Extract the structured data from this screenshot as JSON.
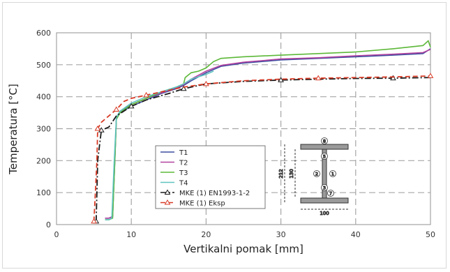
{
  "chart_data": {
    "type": "line",
    "xlabel": "Vertikalni pomak [mm]",
    "ylabel": "Temperatura [°C]",
    "xlim": [
      0,
      50
    ],
    "ylim": [
      0,
      600
    ],
    "xticks": [
      0,
      10,
      20,
      30,
      40,
      50
    ],
    "yticks": [
      0,
      100,
      200,
      300,
      400,
      500,
      600
    ],
    "grid": true,
    "legend_position": "bottom-center",
    "series": [
      {
        "name": "T1",
        "color": "#3a4ea0",
        "style": "solid",
        "marker": "none",
        "x": [
          6.5,
          7.0,
          7.5,
          7.8,
          8.0,
          8.5,
          10,
          12,
          14,
          16,
          17,
          18,
          20,
          22,
          25,
          30,
          35,
          40,
          45,
          49,
          50
        ],
        "y": [
          20,
          20,
          25,
          200,
          330,
          350,
          370,
          390,
          410,
          425,
          435,
          450,
          475,
          495,
          505,
          515,
          520,
          525,
          530,
          535,
          550
        ]
      },
      {
        "name": "T2",
        "color": "#b2429f",
        "style": "solid",
        "marker": "none",
        "x": [
          6.5,
          7.0,
          7.5,
          7.8,
          8.0,
          8.5,
          10,
          12,
          14,
          16,
          17,
          18,
          20,
          22,
          25,
          30,
          35,
          40,
          45,
          49,
          50
        ],
        "y": [
          20,
          20,
          25,
          210,
          335,
          355,
          375,
          395,
          412,
          428,
          438,
          455,
          480,
          498,
          508,
          518,
          522,
          528,
          533,
          538,
          548
        ]
      },
      {
        "name": "T3",
        "color": "#5cb838",
        "style": "solid",
        "marker": "none",
        "x": [
          6.5,
          7.0,
          7.5,
          7.8,
          8.0,
          8.5,
          10,
          12,
          14,
          16,
          17,
          17.2,
          18,
          19,
          20,
          20.5,
          21,
          22,
          25,
          30,
          35,
          40,
          45,
          49,
          49.7,
          50
        ],
        "y": [
          15,
          15,
          20,
          200,
          330,
          350,
          375,
          395,
          415,
          430,
          440,
          460,
          475,
          480,
          490,
          500,
          510,
          520,
          525,
          530,
          535,
          540,
          550,
          560,
          575,
          555
        ]
      },
      {
        "name": "T4",
        "color": "#5ec4c0",
        "style": "solid",
        "marker": "none",
        "x": [
          6.5,
          7.0,
          7.4,
          7.7,
          8.0,
          8.5,
          10,
          12,
          14,
          16,
          17,
          18,
          20,
          21
        ],
        "y": [
          15,
          15,
          20,
          190,
          335,
          355,
          380,
          400,
          415,
          430,
          440,
          455,
          470,
          480
        ]
      },
      {
        "name": "MKE (1) EN1993-1-2",
        "color": "#1a1a1a",
        "style": "dashdot",
        "marker": "triangle",
        "x": [
          5.3,
          5.4,
          5.5,
          6.0,
          7.0,
          8.0,
          10,
          12,
          15,
          17,
          20,
          25,
          30,
          35,
          40,
          45,
          50
        ],
        "y": [
          10,
          100,
          200,
          295,
          305,
          340,
          370,
          390,
          410,
          425,
          440,
          448,
          452,
          455,
          457,
          458,
          460
        ]
      },
      {
        "name": "MKE (1) Eksp",
        "color": "#d83a25",
        "style": "dashed",
        "marker": "triangle",
        "x": [
          5.0,
          5.2,
          5.4,
          5.5,
          6.0,
          7.0,
          8.0,
          9.0,
          10,
          12,
          15,
          17,
          20,
          25,
          30,
          35,
          40,
          45,
          50
        ],
        "y": [
          10,
          100,
          200,
          300,
          320,
          340,
          360,
          385,
          395,
          405,
          420,
          430,
          440,
          450,
          455,
          458,
          460,
          462,
          465
        ]
      }
    ],
    "inset_labels": [
      "8",
      "2",
      "3",
      "1",
      "5",
      "7",
      "212",
      "130",
      "100"
    ]
  }
}
